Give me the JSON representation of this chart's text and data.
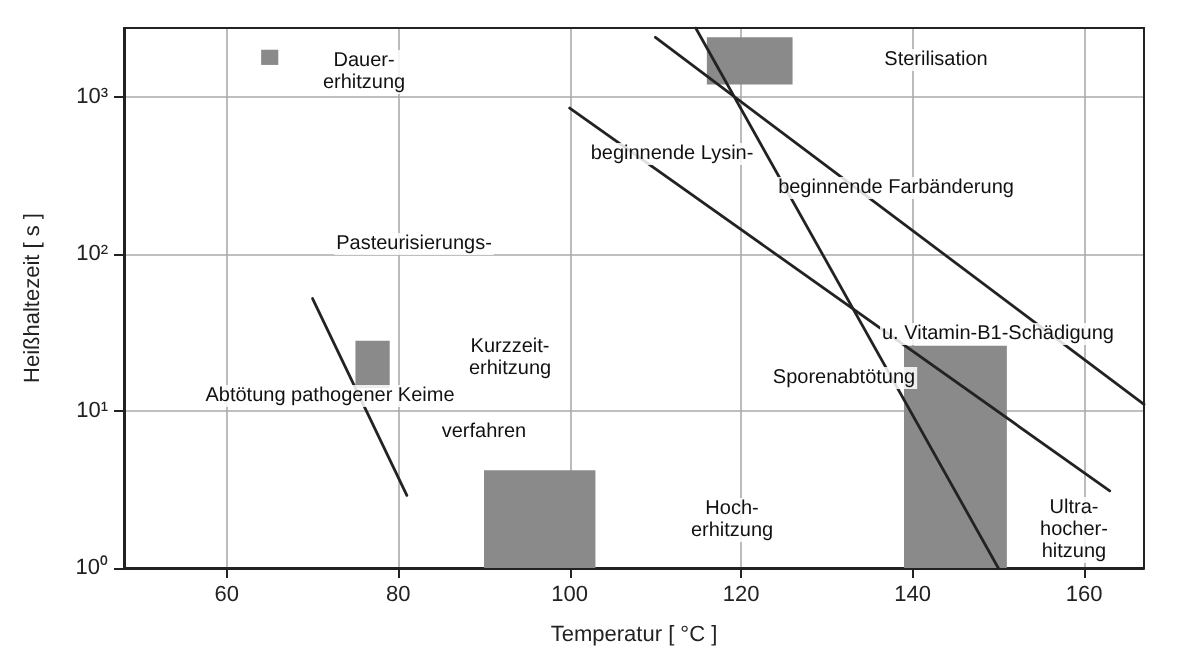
{
  "chart_data": {
    "type": "line",
    "xlabel": "Temperatur [ °C ]",
    "ylabel": "Heißhaltezeit [ s ]",
    "xlim": [
      48,
      167
    ],
    "xticks": [
      60,
      80,
      100,
      120,
      140,
      160
    ],
    "ylim": [
      1,
      2750
    ],
    "yticks": [
      {
        "value": 1,
        "label": "10⁰"
      },
      {
        "value": 10,
        "label": "10¹"
      },
      {
        "value": 100,
        "label": "10²"
      },
      {
        "value": 1000,
        "label": "10³"
      }
    ],
    "log": "y",
    "grid": true,
    "marker": "none",
    "line_style": "solid",
    "series": [
      {
        "color": "#222222",
        "x": [
          110,
          167
        ],
        "values": [
          2400,
          11
        ]
      },
      {
        "color": "#222222",
        "x": [
          100,
          163
        ],
        "values": [
          850,
          3.1
        ]
      },
      {
        "color": "#222222",
        "x": [
          114.7,
          150
        ],
        "values": [
          2750,
          1
        ]
      },
      {
        "color": "#222222",
        "x": [
          70,
          81
        ],
        "values": [
          52,
          2.9
        ]
      },
      {
        "type": "area",
        "color": "#8a8a8a",
        "x": [
          116,
          116,
          126,
          126
        ],
        "values": [
          1200,
          2400,
          2400,
          1200
        ]
      },
      {
        "type": "area",
        "color": "#8a8a8a",
        "x": [
          64,
          64,
          66,
          66
        ],
        "values": [
          1600,
          2000,
          2000,
          1600
        ]
      },
      {
        "type": "area",
        "color": "#8a8a8a",
        "x": [
          75,
          75,
          79,
          79
        ],
        "values": [
          14,
          28,
          28,
          14
        ]
      },
      {
        "type": "area",
        "color": "#8a8a8a",
        "x": [
          90,
          90,
          103,
          103
        ],
        "values": [
          1,
          4.2,
          4.2,
          1
        ]
      },
      {
        "type": "area",
        "color": "#8a8a8a",
        "x": [
          139,
          139,
          151,
          151
        ],
        "values": [
          1,
          26,
          26,
          1
        ]
      }
    ],
    "annotations": [
      "Sterilisation",
      "beginnende Farbänderung",
      "beginnende Lysin-",
      "u. Vitamin-B1-Schädigung",
      "Sporenabtötung",
      "Dauer-\nerhitzung",
      "Pasteurisierungs-",
      "Kurzzeit-\nerhitzung",
      "verfahren",
      "Abtötung pathogener Keime",
      "Hoch-\nerhitzung",
      "Ultra-\nhocher-\nhitzung"
    ]
  }
}
